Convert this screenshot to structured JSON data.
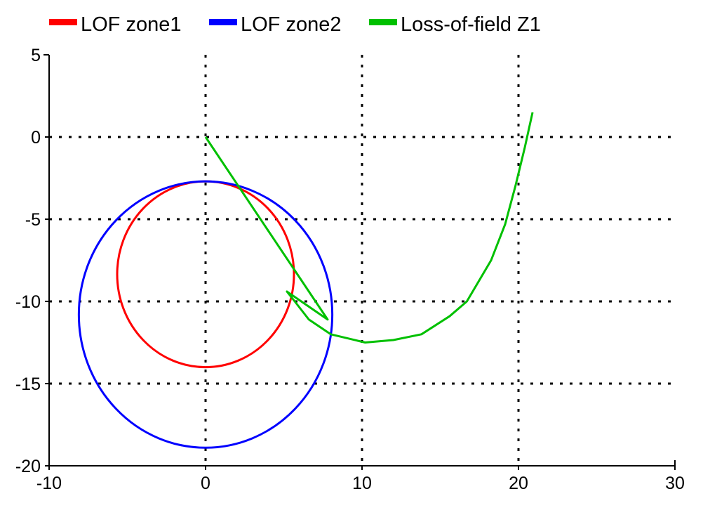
{
  "chart_data": {
    "type": "line",
    "title": "",
    "xlabel": "",
    "ylabel": "",
    "xlim": [
      -10,
      30
    ],
    "ylim": [
      -20,
      5
    ],
    "xticks": [
      -10,
      0,
      10,
      20,
      30
    ],
    "yticks": [
      5,
      0,
      -5,
      -10,
      -15,
      -20
    ],
    "grid": true,
    "legend_position": "top",
    "series": [
      {
        "name": "LOF zone1",
        "color": "#ff0000",
        "kind": "circle",
        "center": [
          0,
          -8.35
        ],
        "radius": 5.65
      },
      {
        "name": "LOF zone2",
        "color": "#0000ff",
        "kind": "circle",
        "center": [
          0,
          -10.8
        ],
        "radius": 8.1
      },
      {
        "name": "Loss-of-field Z1",
        "color": "#00c000",
        "kind": "path",
        "x": [
          0,
          7.8,
          5.2,
          5.7,
          6.6,
          8.0,
          10.2,
          12.0,
          13.8,
          15.6,
          16.7,
          18.25,
          19.15,
          19.8,
          20.4,
          20.9
        ],
        "y": [
          0,
          -11.1,
          -9.4,
          -10.0,
          -11.1,
          -12.0,
          -12.5,
          -12.35,
          -12.0,
          -10.9,
          -10.0,
          -7.5,
          -5.3,
          -3.0,
          -0.65,
          1.5
        ]
      }
    ]
  }
}
